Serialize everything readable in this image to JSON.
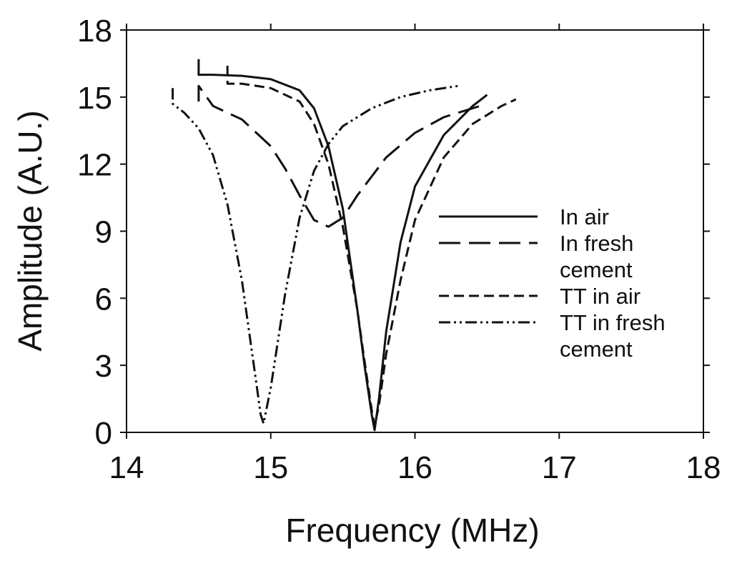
{
  "chart_data": {
    "type": "line",
    "title": "",
    "xlabel": "Frequency (MHz)",
    "ylabel": "Amplitude (A.U.)",
    "xlim": [
      14,
      18
    ],
    "ylim": [
      0,
      18
    ],
    "xticks": [
      14,
      15,
      16,
      17,
      18
    ],
    "yticks": [
      0,
      3,
      6,
      9,
      12,
      15,
      18
    ],
    "grid": false,
    "legend_position": "center-right",
    "series": [
      {
        "name": "In air",
        "line_style": "solid",
        "x": [
          14.5,
          14.5,
          14.6,
          14.8,
          15.0,
          15.2,
          15.3,
          15.4,
          15.5,
          15.6,
          15.65,
          15.7,
          15.72,
          15.75,
          15.8,
          15.9,
          16.0,
          16.2,
          16.4,
          16.5
        ],
        "y": [
          16.7,
          16.0,
          16.0,
          15.95,
          15.8,
          15.3,
          14.5,
          12.8,
          10.0,
          5.5,
          3.0,
          0.8,
          0.1,
          1.5,
          4.5,
          8.5,
          11.0,
          13.3,
          14.6,
          15.1
        ]
      },
      {
        "name": "In fresh cement",
        "line_style": "long-dash",
        "x": [
          14.5,
          14.5,
          14.6,
          14.8,
          15.0,
          15.1,
          15.2,
          15.3,
          15.4,
          15.5,
          15.6,
          15.8,
          16.0,
          16.2,
          16.4,
          16.5
        ],
        "y": [
          14.8,
          15.5,
          14.6,
          14.0,
          12.8,
          11.8,
          10.6,
          9.5,
          9.2,
          9.6,
          10.6,
          12.3,
          13.4,
          14.1,
          14.5,
          14.7
        ]
      },
      {
        "name": "TT in air",
        "line_style": "short-dash",
        "x": [
          14.7,
          14.7,
          14.8,
          15.0,
          15.2,
          15.3,
          15.4,
          15.5,
          15.6,
          15.65,
          15.7,
          15.72,
          15.75,
          15.8,
          15.9,
          16.0,
          16.2,
          16.4,
          16.6,
          16.7
        ],
        "y": [
          16.4,
          15.6,
          15.6,
          15.4,
          14.8,
          13.8,
          12.0,
          9.2,
          5.5,
          3.2,
          1.0,
          0.3,
          1.2,
          3.5,
          6.8,
          9.5,
          12.3,
          13.8,
          14.6,
          14.9
        ]
      },
      {
        "name": "TT in fresh cement",
        "line_style": "dash-dot-dot",
        "x": [
          14.32,
          14.32,
          14.4,
          14.5,
          14.6,
          14.7,
          14.8,
          14.85,
          14.9,
          14.93,
          14.95,
          15.0,
          15.1,
          15.2,
          15.3,
          15.4,
          15.5,
          15.7,
          15.9,
          16.1,
          16.3
        ],
        "y": [
          15.4,
          14.7,
          14.3,
          13.6,
          12.4,
          10.2,
          6.8,
          4.5,
          2.2,
          0.8,
          0.4,
          2.0,
          6.2,
          9.6,
          11.7,
          12.9,
          13.7,
          14.5,
          15.0,
          15.3,
          15.5
        ]
      }
    ],
    "legend_entries": [
      {
        "lines": [
          "In air"
        ],
        "line_style": "solid"
      },
      {
        "lines": [
          "In fresh",
          "cement"
        ],
        "line_style": "long-dash"
      },
      {
        "lines": [
          "TT in air"
        ],
        "line_style": "short-dash"
      },
      {
        "lines": [
          "TT in fresh",
          "cement"
        ],
        "line_style": "dash-dot-dot"
      }
    ],
    "line_color": "#111111"
  }
}
